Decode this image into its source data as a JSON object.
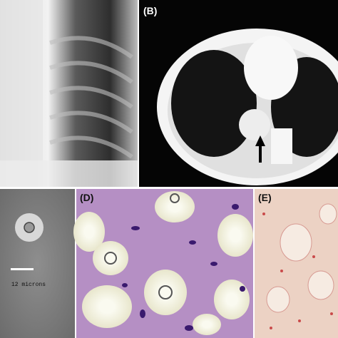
{
  "panels": [
    {
      "label": "(B)"
    },
    {
      "label": "(D)"
    },
    {
      "label": "(E)"
    }
  ],
  "scale_bar": "12 microns"
}
